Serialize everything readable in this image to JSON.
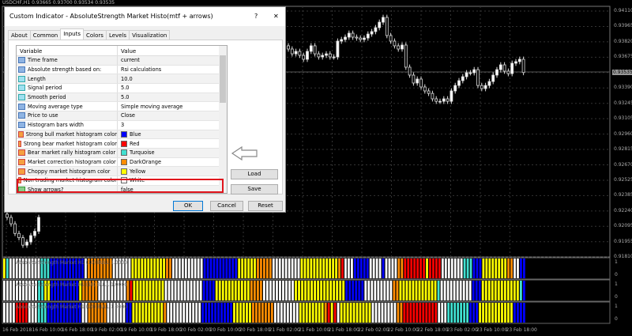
{
  "chart": {
    "symbol_line": "USDCHF,H1  0.93665 0.93700 0.93534 0.93535",
    "price_labels": [
      "0.94110",
      "0.93965",
      "0.93820",
      "0.93675",
      "0.93535",
      "0.93390",
      "0.93245",
      "0.93105",
      "0.92960",
      "0.92815",
      "0.92670",
      "0.92525",
      "0.92385",
      "0.92240",
      "0.92095",
      "0.91955",
      "0.91810"
    ],
    "current_price": "0.93535",
    "time_labels": [
      "16 Feb 2018",
      "16 Feb 10:00",
      "16 Feb 18:00",
      "19 Feb 02:00",
      "19 Feb 10:00",
      "19 Feb 18:00",
      "20 Feb 02:00",
      "20 Feb 10:00",
      "20 Feb 18:00",
      "21 Feb 02:00",
      "21 Feb 10:00",
      "21 Feb 18:00",
      "22 Feb 02:00",
      "22 Feb 10:00",
      "22 Feb 18:00",
      "23 Feb 02:00",
      "23 Feb 10:00",
      "23 Feb 18:00"
    ],
    "left_closes": [
      0.9218,
      0.9212,
      0.9203,
      0.9199,
      0.9192,
      0.9195,
      0.9201,
      0.9205,
      0.9218
    ],
    "closes": [
      0.93755,
      0.9371,
      0.93733,
      0.93696,
      0.93659,
      0.93733,
      0.93785,
      0.9371,
      0.93681,
      0.93696,
      0.9371,
      0.93681,
      0.93681,
      0.93829,
      0.93844,
      0.93866,
      0.93903,
      0.93866,
      0.93858,
      0.93844,
      0.93858,
      0.93895,
      0.93918,
      0.93955,
      0.94006,
      0.94051,
      0.93881,
      0.93829,
      0.93785,
      0.93755,
      0.93792,
      0.93585,
      0.93511,
      0.93437,
      0.93474,
      0.934,
      0.93363,
      0.9334,
      0.93289,
      0.93266,
      0.93266,
      0.93289,
      0.93266,
      0.93363,
      0.93414,
      0.93459,
      0.93496,
      0.93533,
      0.93533,
      0.93562,
      0.93414,
      0.93385,
      0.93414,
      0.93451,
      0.93511,
      0.93562,
      0.93607,
      0.93548,
      0.93525,
      0.93622,
      0.93637,
      0.93659,
      0.93535
    ]
  },
  "histograms": {
    "label": "Absolute Strength Market H1 (10) BULL 1.0000",
    "axis_top": "1",
    "axis_bottom": "0",
    "colors": {
      "Y": "#ffff00",
      "T": "#40e0d0",
      "W": "#ffffff",
      "B": "#0000ff",
      "O": "#ff8c00",
      "R": "#ff0000"
    },
    "panels": [
      [
        [
          "Y",
          1
        ],
        [
          "T",
          1
        ],
        [
          "W",
          10
        ],
        [
          "T",
          3
        ],
        [
          "B",
          11
        ],
        [
          "W",
          1
        ],
        [
          "O",
          8
        ],
        [
          "W",
          6
        ],
        [
          "Y",
          11
        ],
        [
          "O",
          2
        ],
        [
          "W",
          10
        ],
        [
          "B",
          11
        ],
        [
          "Y",
          6
        ],
        [
          "O",
          5
        ],
        [
          "W",
          9
        ],
        [
          "Y",
          12
        ],
        [
          "O",
          1
        ],
        [
          "R",
          1
        ],
        [
          "W",
          3
        ],
        [
          "B",
          5
        ],
        [
          "W",
          4
        ],
        [
          "B",
          1
        ],
        [
          "W",
          4
        ],
        [
          "O",
          2
        ],
        [
          "R",
          7
        ],
        [
          "Y",
          1
        ],
        [
          "R",
          4
        ],
        [
          "W",
          7
        ],
        [
          "T",
          3
        ],
        [
          "B",
          3
        ],
        [
          "Y",
          8
        ],
        [
          "O",
          2
        ],
        [
          "W",
          2
        ],
        [
          "B",
          2
        ]
      ],
      [
        [
          "W",
          11
        ],
        [
          "T",
          2
        ],
        [
          "Y",
          2
        ],
        [
          "B",
          9
        ],
        [
          "Y",
          1
        ],
        [
          "O",
          5
        ],
        [
          "W",
          9
        ],
        [
          "O",
          1
        ],
        [
          "R",
          1
        ],
        [
          "Y",
          10
        ],
        [
          "W",
          12
        ],
        [
          "B",
          4
        ],
        [
          "Y",
          11
        ],
        [
          "O",
          4
        ],
        [
          "W",
          10
        ],
        [
          "Y",
          16
        ],
        [
          "B",
          6
        ],
        [
          "W",
          9
        ],
        [
          "O",
          2
        ],
        [
          "Y",
          12
        ],
        [
          "T",
          1
        ],
        [
          "W",
          10
        ],
        [
          "B",
          3
        ],
        [
          "Y",
          12
        ],
        [
          "T",
          1
        ],
        [
          "B",
          1
        ]
      ],
      [
        [
          "W",
          4
        ],
        [
          "R",
          4
        ],
        [
          "W",
          3
        ],
        [
          "T",
          3
        ],
        [
          "B",
          11
        ],
        [
          "W",
          2
        ],
        [
          "O",
          6
        ],
        [
          "W",
          6
        ],
        [
          "B",
          2
        ],
        [
          "Y",
          10
        ],
        [
          "O",
          1
        ],
        [
          "W",
          11
        ],
        [
          "B",
          10
        ],
        [
          "Y",
          6
        ],
        [
          "O",
          7
        ],
        [
          "W",
          8
        ],
        [
          "Y",
          8
        ],
        [
          "O",
          1
        ],
        [
          "R",
          1
        ],
        [
          "Y",
          1
        ],
        [
          "R",
          1
        ],
        [
          "W",
          1
        ],
        [
          "Y",
          10
        ],
        [
          "W",
          8
        ],
        [
          "O",
          2
        ],
        [
          "R",
          11
        ],
        [
          "W",
          3
        ],
        [
          "T",
          7
        ],
        [
          "B",
          3
        ],
        [
          "Y",
          11
        ],
        [
          "B",
          4
        ]
      ]
    ]
  },
  "dialog": {
    "title": "Custom Indicator - AbsoluteStrength Market  Histo(mtf + arrows)",
    "help": "?",
    "close": "✕",
    "tabs": [
      "About",
      "Common",
      "Inputs",
      "Colors",
      "Levels",
      "Visualization"
    ],
    "active_tab": "Inputs",
    "columns": [
      "Variable",
      "Value"
    ],
    "rows": [
      {
        "icon": "enum",
        "name": "Time frame",
        "value": "current"
      },
      {
        "icon": "enum",
        "name": "Absolute strength based on:",
        "value": "Rsi calculations"
      },
      {
        "icon": "num",
        "name": "Length",
        "value": "10.0"
      },
      {
        "icon": "num",
        "name": "Signal period",
        "value": "5.0"
      },
      {
        "icon": "num",
        "name": "Smooth period",
        "value": "5.0"
      },
      {
        "icon": "enum",
        "name": "Moving average type",
        "value": "Simple moving average"
      },
      {
        "icon": "enum",
        "name": "Price to use",
        "value": "Close"
      },
      {
        "icon": "enum",
        "name": "Histogram bars width",
        "value": "3"
      },
      {
        "icon": "col",
        "name": "Strong bull market histogram color",
        "value": "Blue",
        "swatch": "#0000ff"
      },
      {
        "icon": "col",
        "name": "Strong bear market histogram color",
        "value": "Red",
        "swatch": "#ff0000"
      },
      {
        "icon": "col",
        "name": "Bear market rally histogram color",
        "value": "Turquoise",
        "swatch": "#40e0d0"
      },
      {
        "icon": "col",
        "name": "Market correction histogram color",
        "value": "DarkOrange",
        "swatch": "#ff8c00"
      },
      {
        "icon": "col",
        "name": "Choppy market histogram color",
        "value": "Yellow",
        "swatch": "#ffff00"
      },
      {
        "icon": "col",
        "name": "Non trading market histogram color",
        "value": "White",
        "swatch": "#ffffff"
      },
      {
        "icon": "bool",
        "name": "Show arrows?",
        "value": "false"
      }
    ],
    "highlighted_row": "Bear market rally histogram color",
    "highlight_color": "#e0141c",
    "load": "Load",
    "save": "Save",
    "ok": "OK",
    "cancel": "Cancel",
    "reset": "Reset"
  }
}
